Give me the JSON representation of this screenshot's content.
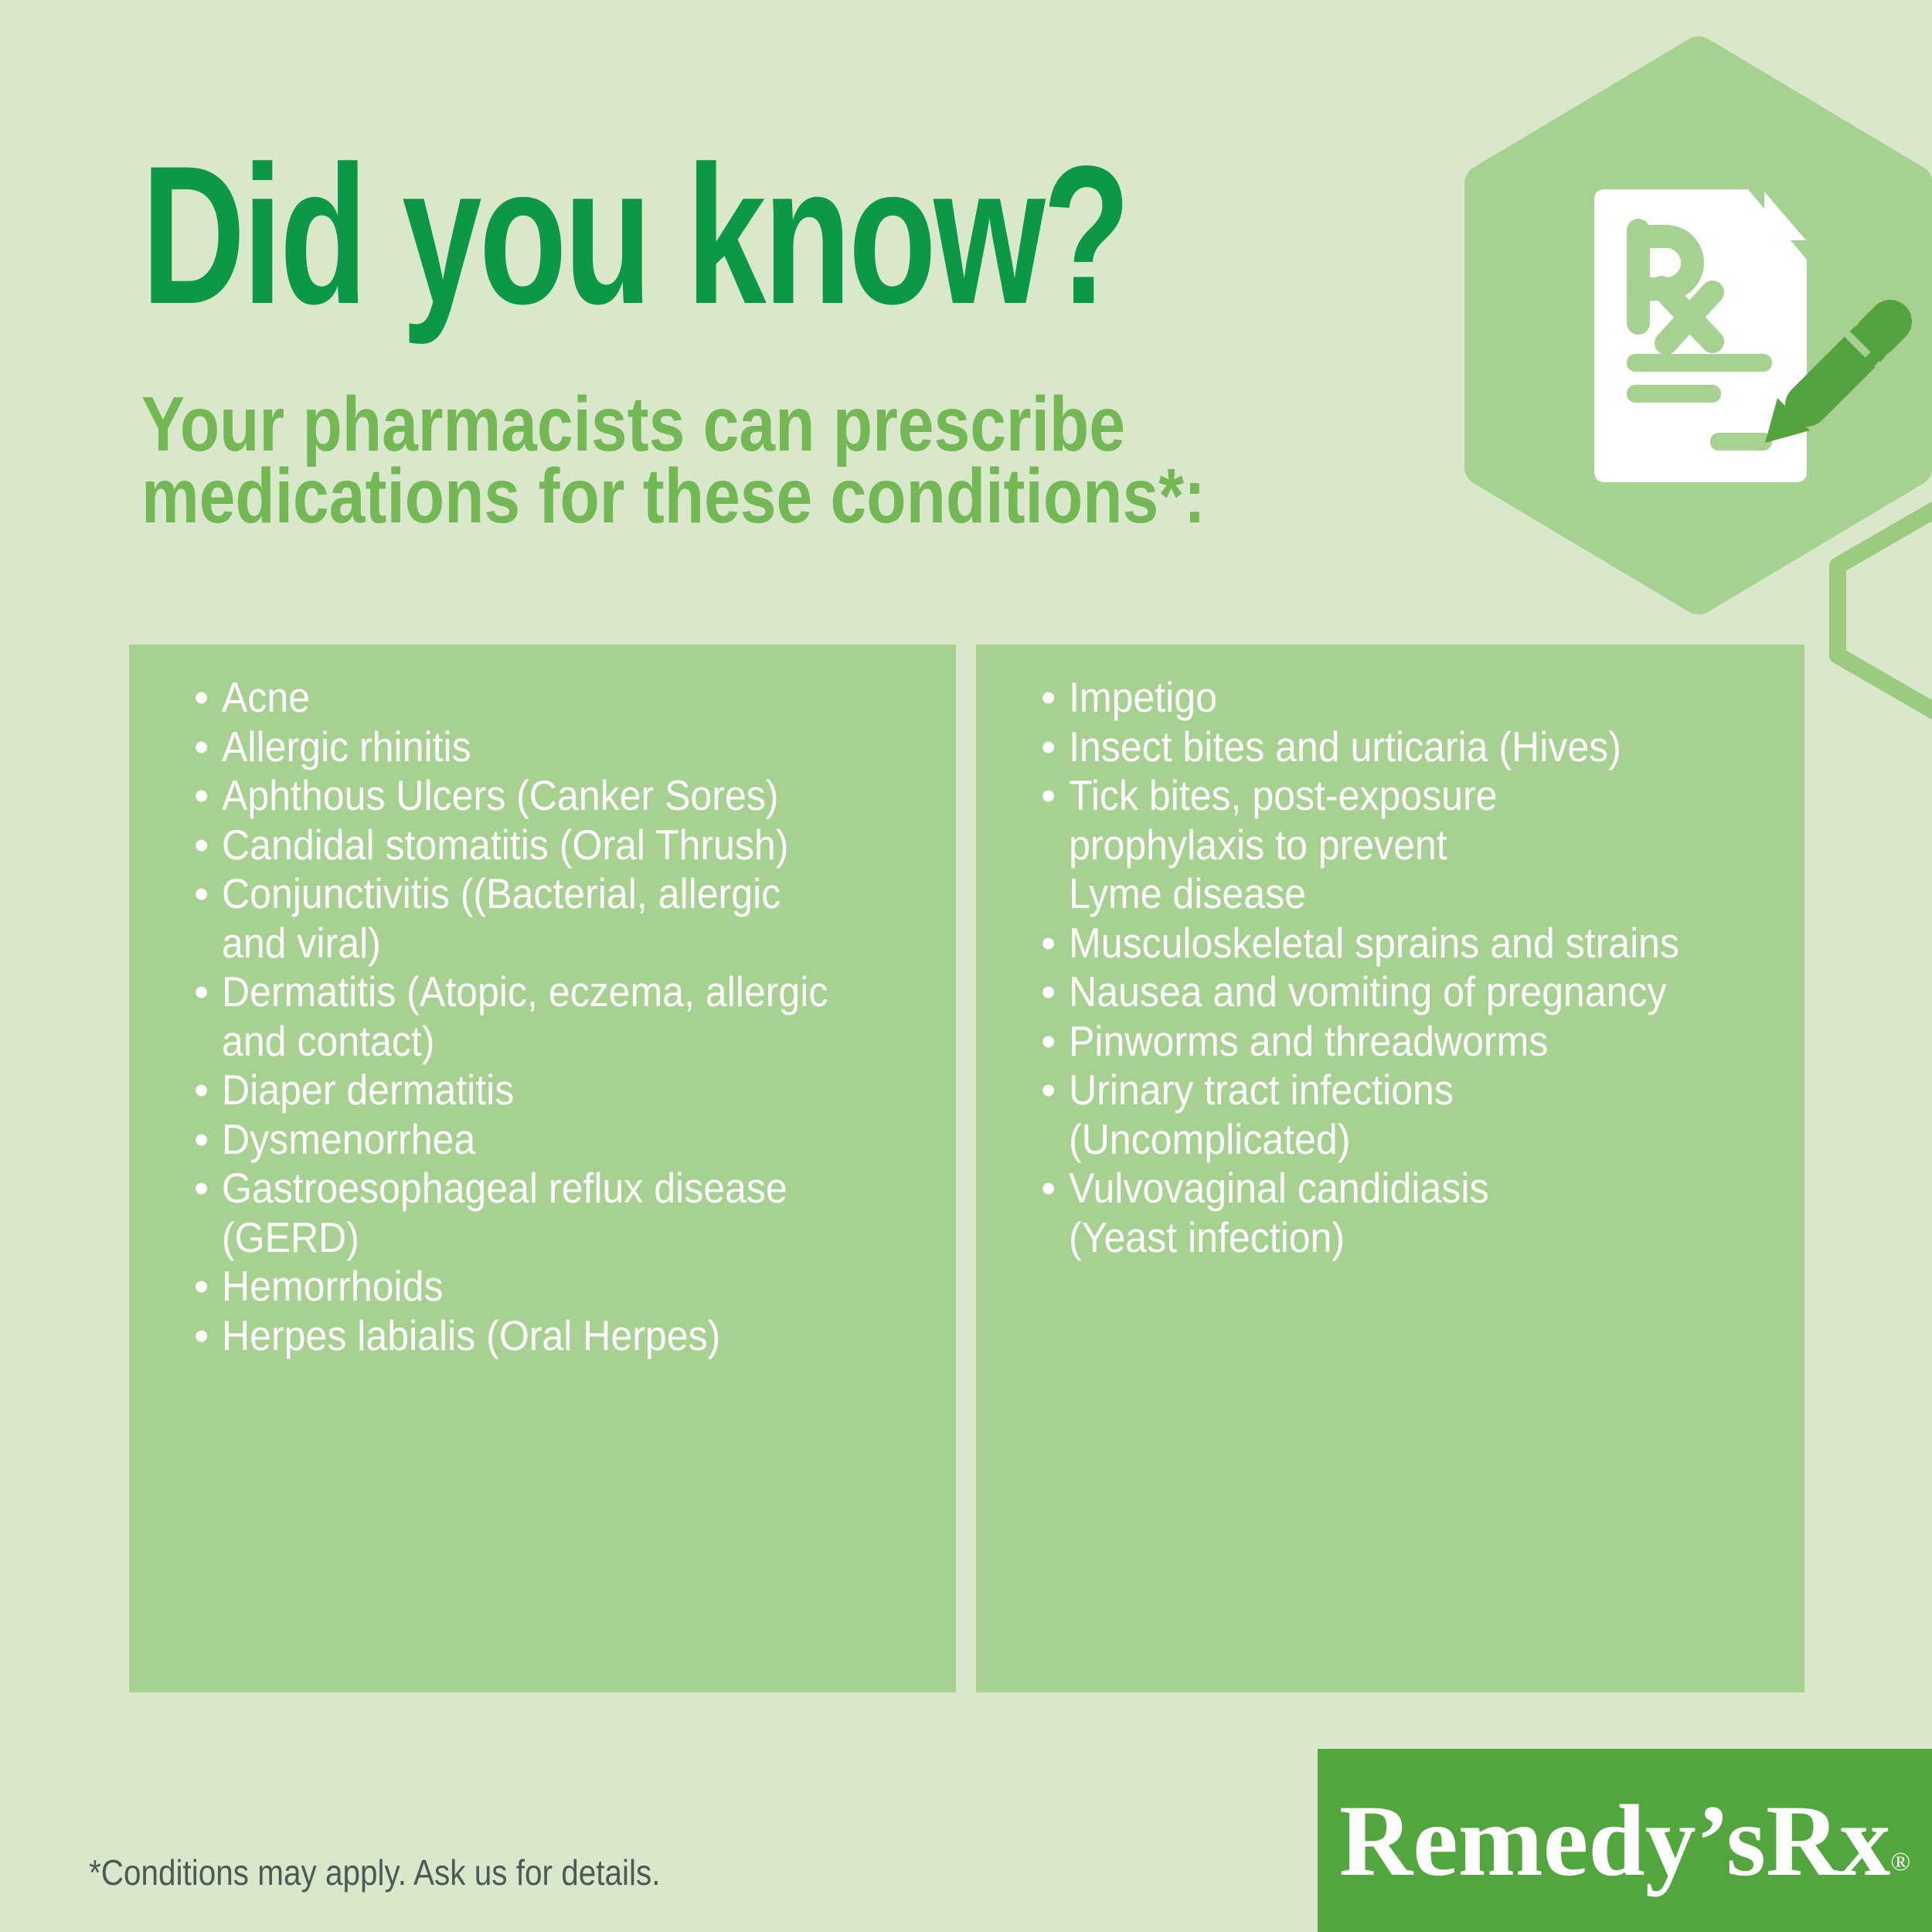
{
  "title": "Did you know?",
  "subtitle": {
    "line1": "Your pharmacists can prescribe",
    "line2": "medications for these conditions*:"
  },
  "left_list": [
    {
      "text": "Acne",
      "bullet": true
    },
    {
      "text": "Allergic rhinitis",
      "bullet": true
    },
    {
      "text": "Aphthous Ulcers (Canker Sores)",
      "bullet": true
    },
    {
      "text": "Candidal stomatitis (Oral Thrush)",
      "bullet": true
    },
    {
      "text": "Conjunctivitis ((Bacterial, allergic",
      "bullet": true
    },
    {
      "text": "and viral)",
      "bullet": false
    },
    {
      "text": "Dermatitis (Atopic, eczema, allergic",
      "bullet": true
    },
    {
      "text": "and contact)",
      "bullet": false
    },
    {
      "text": "Diaper dermatitis",
      "bullet": true
    },
    {
      "text": "Dysmenorrhea",
      "bullet": true
    },
    {
      "text": "Gastroesophageal reflux disease",
      "bullet": true
    },
    {
      "text": "(GERD)",
      "bullet": false
    },
    {
      "text": "Hemorrhoids",
      "bullet": true
    },
    {
      "text": "Herpes labialis (Oral Herpes)",
      "bullet": true
    }
  ],
  "right_list": [
    {
      "text": "Impetigo",
      "bullet": true
    },
    {
      "text": "Insect bites and urticaria (Hives)",
      "bullet": true
    },
    {
      "text": "Tick bites, post-exposure",
      "bullet": true
    },
    {
      "text": "prophylaxis to prevent",
      "bullet": false
    },
    {
      "text": "Lyme disease",
      "bullet": false
    },
    {
      "text": "Musculoskeletal sprains and strains",
      "bullet": true
    },
    {
      "text": "Nausea and vomiting of pregnancy",
      "bullet": true
    },
    {
      "text": "Pinworms and threadworms",
      "bullet": true
    },
    {
      "text": "Urinary tract infections",
      "bullet": true
    },
    {
      "text": "(Uncomplicated)",
      "bullet": false
    },
    {
      "text": "Vulvovaginal candidiasis",
      "bullet": true
    },
    {
      "text": "(Yeast infection)",
      "bullet": false
    }
  ],
  "footnote": "*Conditions may apply. Ask us for details.",
  "logo": {
    "text": "Remedy’sRx",
    "reg": "®"
  },
  "icons": {
    "hexagon": "hexagon-badge",
    "document": "prescription-rx-document-icon",
    "pen": "pen-icon"
  },
  "colors": {
    "background": "#d9e8cb",
    "panel": "#a7d190",
    "hex_fill": "#a7d190",
    "hex_outline": "#9bcb7e",
    "title_green": "#0c9847",
    "subtitle_green": "#73b855",
    "pen_green": "#55a33e",
    "logo_bar": "#53a63d",
    "footnote_text": "#4b5a54",
    "list_text": "#ffffff",
    "logo_text": "#ffffff"
  }
}
